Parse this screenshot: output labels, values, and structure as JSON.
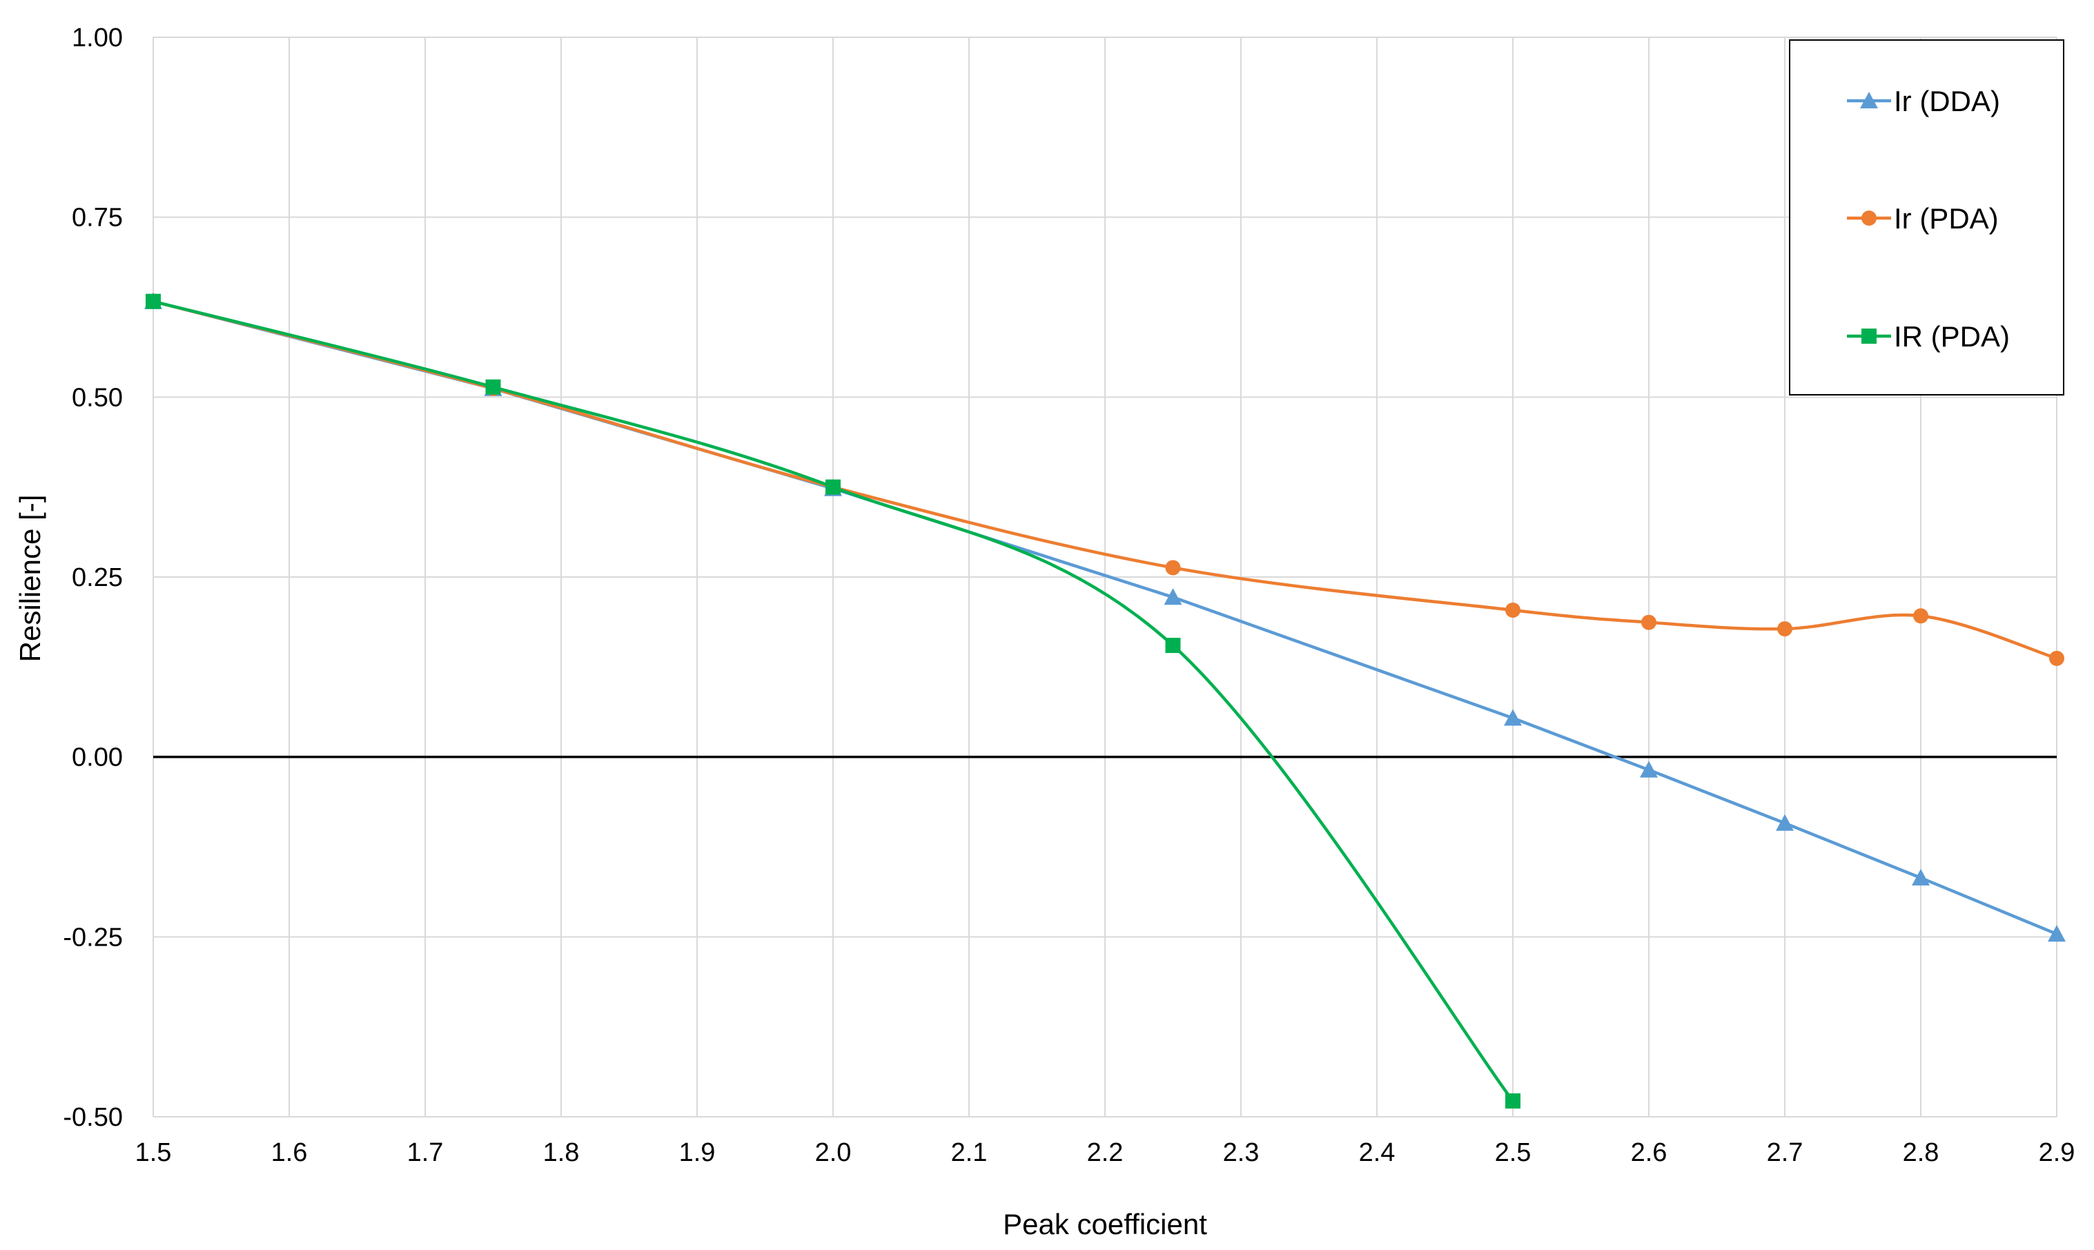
{
  "chart_data": {
    "type": "line",
    "title": "",
    "xlabel": "Peak coefficient",
    "ylabel": "Resilience [-]",
    "xlim": [
      1.5,
      2.9
    ],
    "ylim": [
      -0.5,
      1.0
    ],
    "x_ticks": [
      1.5,
      1.6,
      1.7,
      1.8,
      1.9,
      2.0,
      2.1,
      2.2,
      2.3,
      2.4,
      2.5,
      2.6,
      2.7,
      2.8,
      2.9
    ],
    "x_tick_labels": [
      "1.5",
      "1.6",
      "1.7",
      "1.8",
      "1.9",
      "2.0",
      "2.1",
      "2.2",
      "2.3",
      "2.4",
      "2.5",
      "2.6",
      "2.7",
      "2.8",
      "2.9"
    ],
    "y_ticks": [
      -0.5,
      -0.25,
      0.0,
      0.25,
      0.5,
      0.75,
      1.0
    ],
    "y_tick_labels": [
      "-0.50",
      "-0.25",
      "0.00",
      "0.25",
      "0.50",
      "0.75",
      "1.00"
    ],
    "grid": true,
    "zero_line": true,
    "legend_position": "top-right",
    "series": [
      {
        "name": "Ir (DDA)",
        "color": "#5B9BD5",
        "marker": "triangle",
        "smooth": false,
        "x": [
          1.5,
          1.75,
          2.0,
          2.25,
          2.5,
          2.6,
          2.7,
          2.8,
          2.9
        ],
        "y": [
          0.633,
          0.512,
          0.373,
          0.222,
          0.054,
          -0.018,
          -0.092,
          -0.168,
          -0.246
        ]
      },
      {
        "name": "Ir (PDA)",
        "color": "#ED7D31",
        "marker": "circle",
        "smooth": true,
        "x": [
          1.5,
          1.75,
          2.0,
          2.25,
          2.5,
          2.6,
          2.7,
          2.8,
          2.9
        ],
        "y": [
          0.633,
          0.512,
          0.375,
          0.263,
          0.204,
          0.187,
          0.178,
          0.196,
          0.137
        ]
      },
      {
        "name": "IR (PDA)",
        "color": "#00B050",
        "marker": "square",
        "smooth": true,
        "x": [
          1.5,
          1.75,
          2.0,
          2.25,
          2.5
        ],
        "y": [
          0.633,
          0.514,
          0.375,
          0.155,
          -0.478
        ]
      }
    ]
  }
}
